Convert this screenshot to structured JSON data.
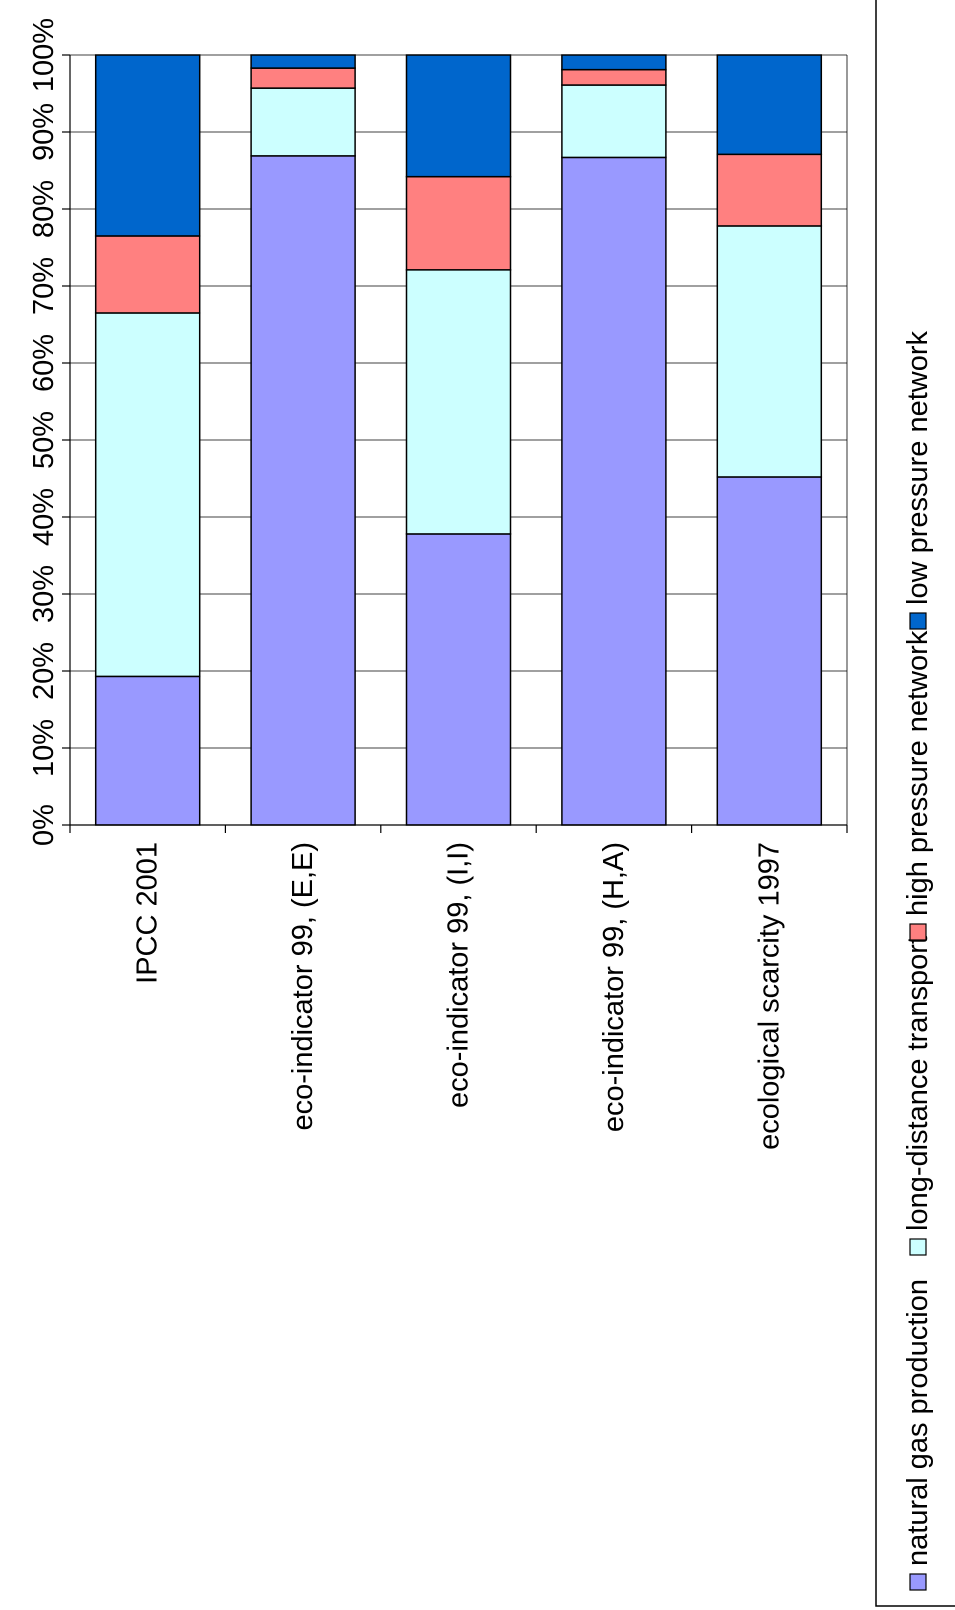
{
  "chart_data": {
    "type": "bar",
    "stacked": "percent",
    "orientation": "vertical",
    "rotation": "rotated 90 degrees counter-clockwise",
    "categories": [
      "IPCC 2001",
      "eco-indicator 99, (E,E)",
      "eco-indicator 99, (I,I)",
      "eco-indicator 99, (H,A)",
      "ecological scarcity 1997"
    ],
    "series": [
      {
        "name": "natural gas   production",
        "color": "#9999ff",
        "values": [
          19.3,
          86.9,
          37.8,
          86.7,
          45.2
        ]
      },
      {
        "name": "long-distance transport",
        "color": "#ccffff",
        "values": [
          47.2,
          8.8,
          34.3,
          9.4,
          32.6
        ]
      },
      {
        "name": "high pressure network",
        "color": "#ff8080",
        "values": [
          10.0,
          2.6,
          12.1,
          2.0,
          9.3
        ]
      },
      {
        "name": "low pressure network",
        "color": "#0066cc",
        "values": [
          23.5,
          1.7,
          15.8,
          1.9,
          12.9
        ]
      }
    ],
    "ylim": [
      0,
      100
    ],
    "yticks": [
      "0%",
      "10%",
      "20%",
      "30%",
      "40%",
      "50%",
      "60%",
      "70%",
      "80%",
      "90%",
      "100%"
    ],
    "grid": true,
    "legend_position": "right"
  }
}
